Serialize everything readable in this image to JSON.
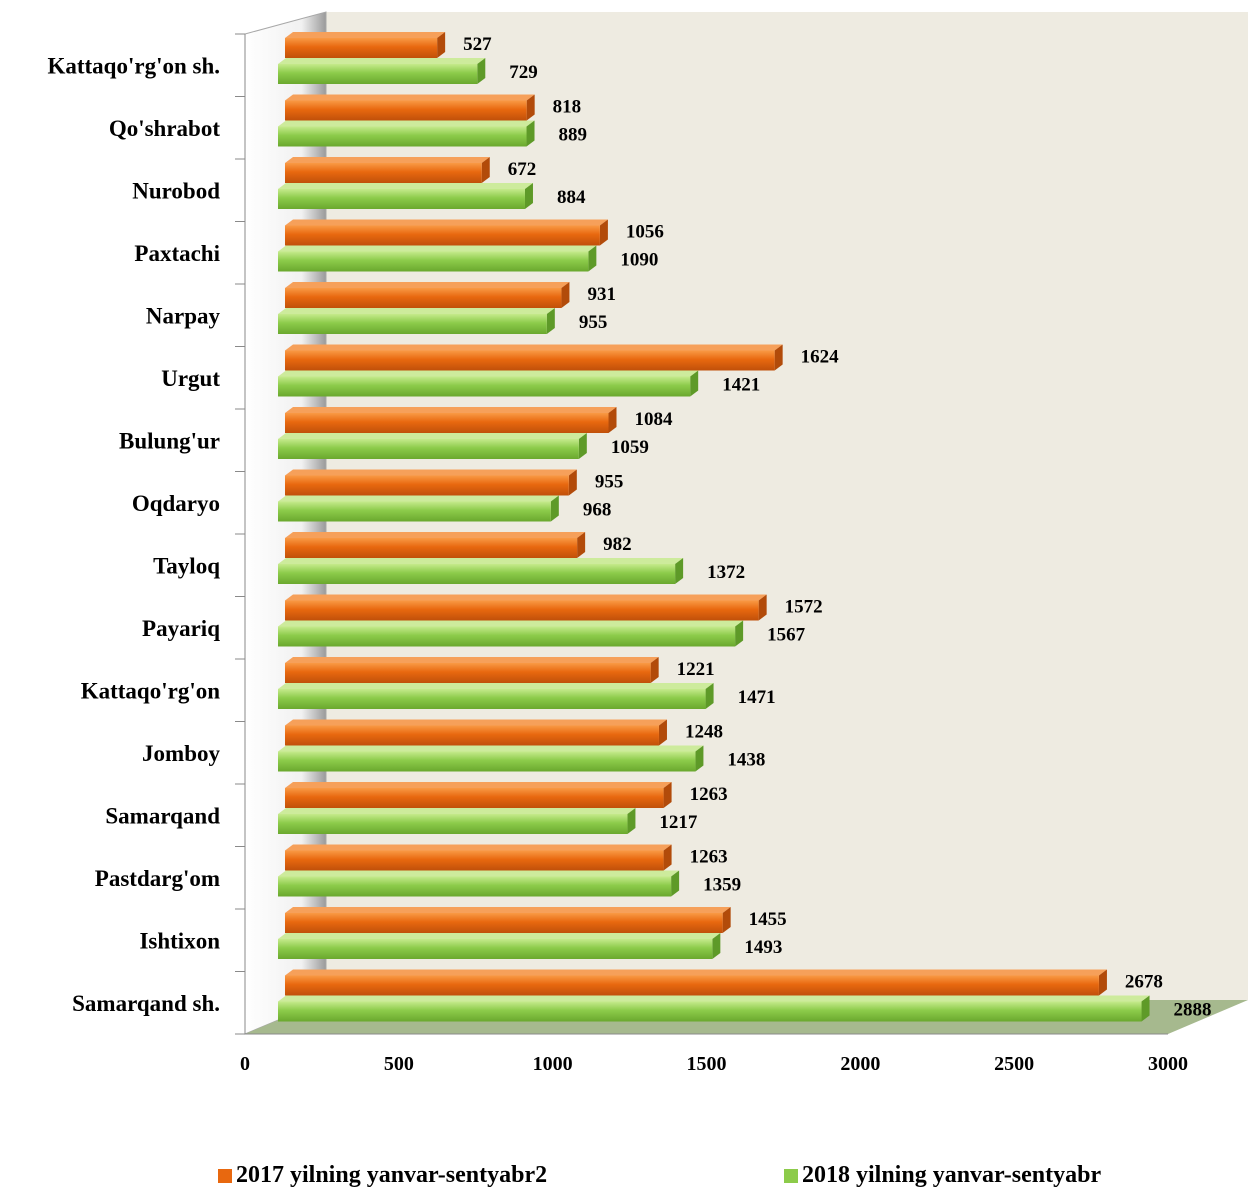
{
  "chart_data": {
    "type": "bar",
    "orientation": "horizontal",
    "style": "3d",
    "categories": [
      "Samarqand sh.",
      "Ishtixon",
      "Pastdarg'om",
      "Samarqand",
      "Jomboy",
      "Kattaqo'rg'on",
      "Payariq",
      "Tayloq",
      "Oqdaryo",
      "Bulung'ur",
      "Urgut",
      "Narpay",
      "Paxtachi",
      "Nurobod",
      "Qo'shrabot",
      "Kattaqo'rg'on sh."
    ],
    "series": [
      {
        "name": "2017 yilning yanvar-sentyabr2",
        "values": [
          2678,
          1455,
          1263,
          1263,
          1248,
          1221,
          1572,
          982,
          955,
          1084,
          1624,
          931,
          1056,
          672,
          818,
          527
        ]
      },
      {
        "name": "2018 yilning yanvar-sentyabr",
        "values": [
          2888,
          1493,
          1359,
          1217,
          1438,
          1471,
          1567,
          1372,
          968,
          1059,
          1421,
          955,
          1090,
          884,
          889,
          729
        ]
      }
    ],
    "xlim": [
      0,
      3000
    ],
    "xticks": [
      "0",
      "500",
      "1000",
      "1500",
      "2000",
      "2500",
      "3000"
    ],
    "title": "",
    "xlabel": "",
    "ylabel": "",
    "legend_position": "bottom",
    "colors": {
      "series_2017": "#E8680F",
      "series_2018": "#8CCB4A",
      "wall": "#EEEBE1",
      "floor": "#A6B98E"
    }
  }
}
